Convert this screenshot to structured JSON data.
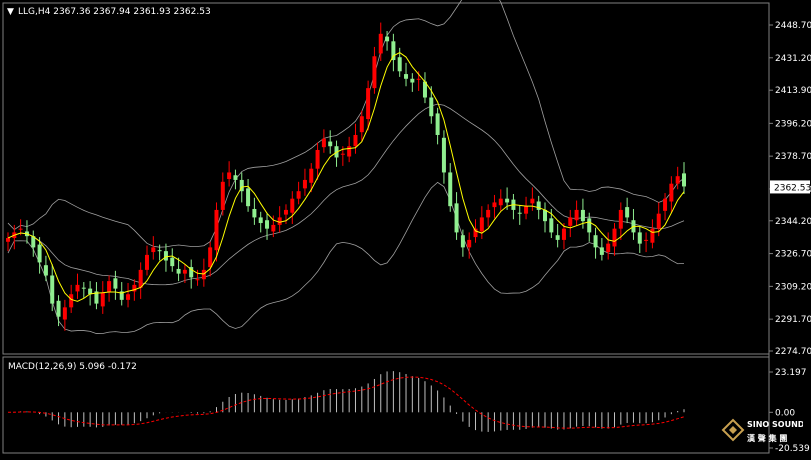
{
  "main_panel": {
    "symbol_line": "LLG,H4  2367.36 2367.94 2361.93 2362.53",
    "current_price_label": "2362.53",
    "y_ticks": [
      "2448.70",
      "2431.20",
      "2413.90",
      "2396.20",
      "2378.70",
      "2361.20",
      "2344.20",
      "2326.70",
      "2309.20",
      "2291.70",
      "2274.70"
    ],
    "y_tick_values": [
      2448.7,
      2431.2,
      2413.9,
      2396.2,
      2378.7,
      2361.2,
      2344.2,
      2326.7,
      2309.2,
      2291.7,
      2274.7
    ],
    "current_price": 2362.53
  },
  "macd_panel": {
    "label": "MACD(12,26,9) 5.096 -0.172",
    "y_ticks": [
      "23.197",
      "0.00",
      "-20.539"
    ],
    "y_tick_values": [
      23.197,
      0.0,
      -20.539
    ]
  },
  "colors": {
    "background": "#000000",
    "grid_border": "#808080",
    "bull_candle": "#ff0000",
    "bear_candle": "#90ee90",
    "ma_line": "#ffff00",
    "bollinger": "#a0a0a0",
    "macd_hist": "#c0c0c0",
    "signal_line": "#ff0000"
  },
  "watermark": {
    "text_en": "SINO SOUND",
    "text_cn": "漢 聲 集 團"
  },
  "chart_data": {
    "type": "candlestick",
    "title": "LLG,H4",
    "ohlc_last": {
      "open": 2367.36,
      "high": 2367.94,
      "low": 2361.93,
      "close": 2362.53
    },
    "close_series": [
      2335,
      2338,
      2340,
      2336,
      2330,
      2322,
      2315,
      2300,
      2293,
      2298,
      2305,
      2310,
      2308,
      2305,
      2300,
      2306,
      2312,
      2308,
      2302,
      2305,
      2310,
      2318,
      2326,
      2330,
      2328,
      2323,
      2320,
      2316,
      2318,
      2314,
      2313,
      2318,
      2330,
      2350,
      2365,
      2370,
      2366,
      2360,
      2352,
      2346,
      2343,
      2340,
      2342,
      2346,
      2350,
      2356,
      2360,
      2366,
      2372,
      2382,
      2388,
      2384,
      2378,
      2380,
      2384,
      2390,
      2400,
      2415,
      2432,
      2444,
      2440,
      2430,
      2424,
      2420,
      2418,
      2420,
      2410,
      2400,
      2390,
      2370,
      2352,
      2338,
      2330,
      2334,
      2340,
      2346,
      2350,
      2354,
      2356,
      2354,
      2350,
      2348,
      2352,
      2356,
      2350,
      2344,
      2338,
      2334,
      2340,
      2346,
      2350,
      2344,
      2338,
      2330,
      2326,
      2332,
      2340,
      2350,
      2346,
      2338,
      2332,
      2334,
      2340,
      2348,
      2356,
      2364,
      2368,
      2362.53
    ],
    "x_range": "H4 bars",
    "ylim": [
      2274.7,
      2448.7
    ]
  }
}
